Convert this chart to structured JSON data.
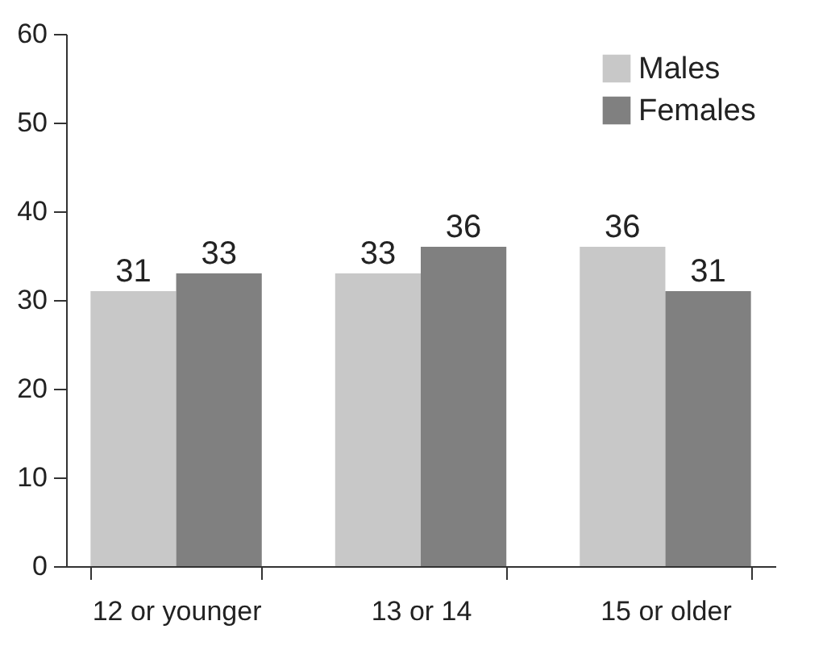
{
  "chart_data": {
    "type": "bar",
    "categories": [
      "12 or younger",
      "13 or 14",
      "15 or older"
    ],
    "series": [
      {
        "name": "Males",
        "color": "#c8c8c8",
        "values": [
          31,
          33,
          36
        ]
      },
      {
        "name": "Females",
        "color": "#808080",
        "values": [
          33,
          36,
          31
        ]
      }
    ],
    "ylim": [
      0,
      60
    ],
    "yticks": [
      0,
      10,
      20,
      30,
      40,
      50,
      60
    ],
    "grid": false,
    "legend": "top right",
    "data_labels": true
  }
}
